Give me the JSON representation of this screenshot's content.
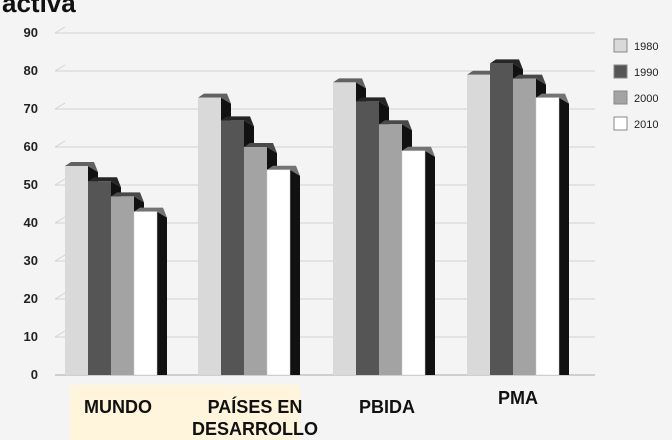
{
  "chart_data": {
    "type": "bar",
    "title": "activa",
    "categories": [
      "MUNDO",
      "PAÍSES EN DESARROLLO",
      "PBIDA",
      "PMA"
    ],
    "series": [
      {
        "name": "1980",
        "values": [
          55,
          73,
          77,
          79
        ],
        "color": "#d9d9d9"
      },
      {
        "name": "1990",
        "values": [
          51,
          67,
          72,
          82
        ],
        "color": "#555555"
      },
      {
        "name": "2000",
        "values": [
          47,
          60,
          66,
          78
        ],
        "color": "#a3a3a3"
      },
      {
        "name": "2010",
        "values": [
          43,
          54,
          59,
          73
        ],
        "color": "#ffffff"
      }
    ],
    "yticks": [
      "0",
      "10",
      "20",
      "30",
      "40",
      "50",
      "60",
      "70",
      "80",
      "90"
    ],
    "ylim": [
      0,
      90
    ],
    "legend_position": "right",
    "grid": true,
    "bar_style": "3d"
  }
}
